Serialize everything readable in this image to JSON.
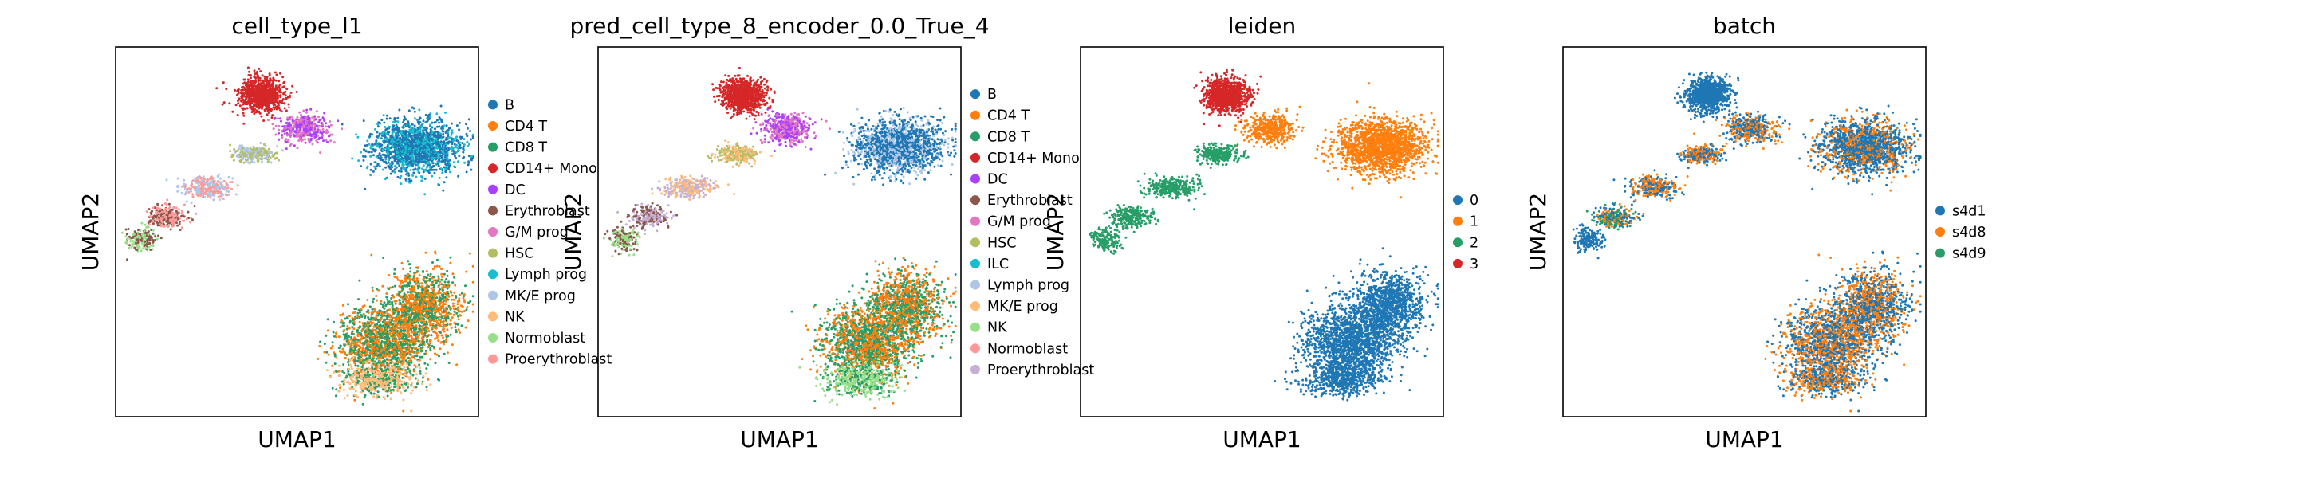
{
  "chart_data": [
    {
      "type": "scatter",
      "title": "cell_type_l1",
      "xlabel": "UMAP1",
      "ylabel": "UMAP2",
      "xticks": false,
      "yticks": false,
      "legend_location": "right",
      "legend": [
        {
          "label": "B",
          "color": "#1f77b4"
        },
        {
          "label": "CD4 T",
          "color": "#ff7f0e"
        },
        {
          "label": "CD8 T",
          "color": "#279e68"
        },
        {
          "label": "CD14+ Mono",
          "color": "#d62728"
        },
        {
          "label": "DC",
          "color": "#aa40fc"
        },
        {
          "label": "Erythroblast",
          "color": "#8c564b"
        },
        {
          "label": "G/M prog",
          "color": "#e377c2"
        },
        {
          "label": "HSC",
          "color": "#b5bd61"
        },
        {
          "label": "Lymph prog",
          "color": "#17becf"
        },
        {
          "label": "MK/E prog",
          "color": "#aec7e8"
        },
        {
          "label": "NK",
          "color": "#ffbb78"
        },
        {
          "label": "Normoblast",
          "color": "#98df8a"
        },
        {
          "label": "Proerythroblast",
          "color": "#ff9896"
        }
      ]
    },
    {
      "type": "scatter",
      "title": "pred_cell_type_8_encoder_0.0_True_4",
      "xlabel": "UMAP1",
      "ylabel": "UMAP2",
      "xticks": false,
      "yticks": false,
      "legend_location": "right",
      "legend": [
        {
          "label": "B",
          "color": "#1f77b4"
        },
        {
          "label": "CD4 T",
          "color": "#ff7f0e"
        },
        {
          "label": "CD8 T",
          "color": "#279e68"
        },
        {
          "label": "CD14+ Mono",
          "color": "#d62728"
        },
        {
          "label": "DC",
          "color": "#aa40fc"
        },
        {
          "label": "Erythroblast",
          "color": "#8c564b"
        },
        {
          "label": "G/M prog",
          "color": "#e377c2"
        },
        {
          "label": "HSC",
          "color": "#b5bd61"
        },
        {
          "label": "ILC",
          "color": "#17becf"
        },
        {
          "label": "Lymph prog",
          "color": "#aec7e8"
        },
        {
          "label": "MK/E prog",
          "color": "#ffbb78"
        },
        {
          "label": "NK",
          "color": "#98df8a"
        },
        {
          "label": "Normoblast",
          "color": "#ff9896"
        },
        {
          "label": "Proerythroblast",
          "color": "#c5b0d5"
        }
      ]
    },
    {
      "type": "scatter",
      "title": "leiden",
      "xlabel": "UMAP1",
      "ylabel": "UMAP2",
      "xticks": false,
      "yticks": false,
      "legend_location": "right",
      "legend": [
        {
          "label": "0",
          "color": "#1f77b4"
        },
        {
          "label": "1",
          "color": "#ff7f0e"
        },
        {
          "label": "2",
          "color": "#279e68"
        },
        {
          "label": "3",
          "color": "#d62728"
        }
      ]
    },
    {
      "type": "scatter",
      "title": "batch",
      "xlabel": "UMAP1",
      "ylabel": "UMAP2",
      "xticks": false,
      "yticks": false,
      "legend_location": "right",
      "legend": [
        {
          "label": "s4d1",
          "color": "#1f77b4"
        },
        {
          "label": "s4d8",
          "color": "#ff7f0e"
        },
        {
          "label": "s4d9",
          "color": "#279e68"
        }
      ]
    }
  ]
}
